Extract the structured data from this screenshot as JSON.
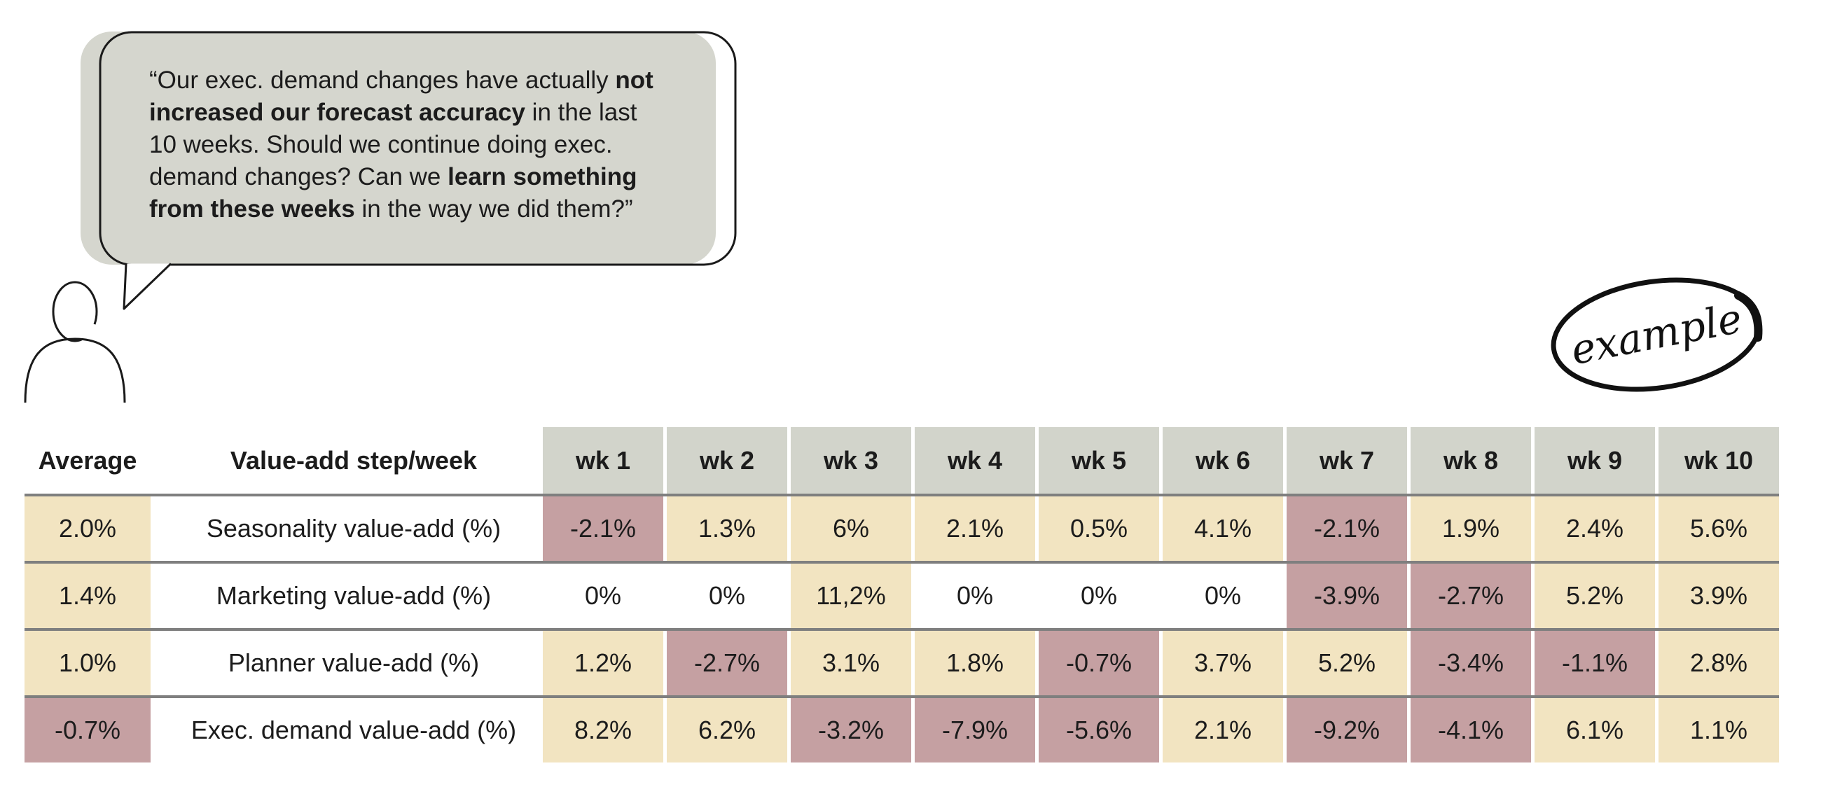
{
  "quote": {
    "lines": [
      {
        "segments": [
          {
            "t": "“Our exec. demand changes have actually ",
            "b": false
          },
          {
            "t": "not",
            "b": true
          }
        ]
      },
      {
        "segments": [
          {
            "t": "increased our forecast accuracy",
            "b": true
          },
          {
            "t": " in the last",
            "b": false
          }
        ]
      },
      {
        "segments": [
          {
            "t": "10 weeks. Should we continue doing exec.",
            "b": false
          }
        ]
      },
      {
        "segments": [
          {
            "t": "demand changes? Can we ",
            "b": false
          },
          {
            "t": "learn something",
            "b": true
          }
        ]
      },
      {
        "segments": [
          {
            "t": "from these weeks",
            "b": true
          },
          {
            "t": " in the way we did them?”",
            "b": false
          }
        ]
      }
    ]
  },
  "badge": {
    "label": "example"
  },
  "chart_data": {
    "type": "table",
    "corner_headers": [
      "Average",
      "Value-add step/week"
    ],
    "categories": [
      "wk 1",
      "wk 2",
      "wk 3",
      "wk 4",
      "wk 5",
      "wk 6",
      "wk 7",
      "wk 8",
      "wk 9",
      "wk 10"
    ],
    "series": [
      {
        "name": "Seasonality value-add (%)",
        "average": "2.0%",
        "values": [
          "-2.1%",
          "1.3%",
          "6%",
          "2.1%",
          "0.5%",
          "4.1%",
          "-2.1%",
          "1.9%",
          "2.4%",
          "5.6%"
        ]
      },
      {
        "name": "Marketing value-add (%)",
        "average": "1.4%",
        "values": [
          "0%",
          "0%",
          "11,2%",
          "0%",
          "0%",
          "0%",
          "-3.9%",
          "-2.7%",
          "5.2%",
          "3.9%"
        ]
      },
      {
        "name": "Planner value-add (%)",
        "average": "1.0%",
        "values": [
          "1.2%",
          "-2.7%",
          "3.1%",
          "1.8%",
          "-0.7%",
          "3.7%",
          "5.2%",
          "-3.4%",
          "-1.1%",
          "2.8%"
        ]
      },
      {
        "name": "Exec. demand value-add (%)",
        "average": "-0.7%",
        "values": [
          "8.2%",
          "6.2%",
          "-3.2%",
          "-7.9%",
          "-5.6%",
          "2.1%",
          "-9.2%",
          "-4.1%",
          "6.1%",
          "1.1%"
        ]
      }
    ],
    "legend": "cell shading: tan = positive value-add, mauve = negative value-add, white = zero",
    "layout": "rows separated by gray rules; week header cells gray"
  },
  "colors": {
    "background": "#ffffff",
    "bubble_fill": "#d5d6ce",
    "header_cell": "#d2d4cb",
    "positive_cell": "#f2e4c1",
    "negative_cell": "#c5a0a2",
    "separator_line": "#7f7f7f",
    "ink": "#1c1c1c"
  }
}
